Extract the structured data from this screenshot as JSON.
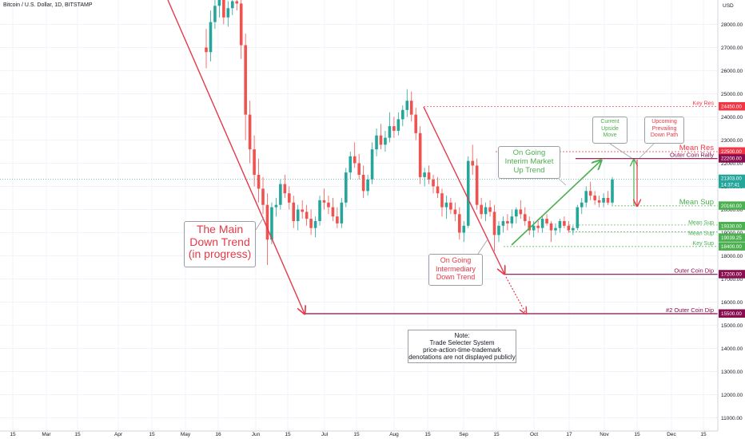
{
  "header": {
    "symbol_title": "Bitcoin / U.S. Dollar, 1D, BITSTAMP"
  },
  "colors": {
    "red": "#e53949",
    "green": "#4caf50",
    "maroon": "#880e4f",
    "bull": "#26a69a",
    "bear": "#ef5350",
    "mean_res": "#f23645"
  },
  "chart_data": {
    "type": "candlestick",
    "title": "Bitcoin / U.S. Dollar, 1D, BITSTAMP",
    "y_axis_unit": "USD",
    "ylim": [
      10500,
      29500
    ],
    "y_ticks": [
      "28000.00",
      "27000.00",
      "26000.00",
      "25000.00",
      "24000.00",
      "23000.00",
      "22000.00",
      "21000.00",
      "20000.00",
      "19000.00",
      "18000.00",
      "17000.00",
      "16000.00",
      "15000.00",
      "14000.00",
      "13000.00",
      "12000.00",
      "11000.00"
    ],
    "x_ticks": [
      "15",
      "Mar",
      "15",
      "Apr",
      "15",
      "May",
      "16",
      "Jun",
      "15",
      "Jul",
      "15",
      "Aug",
      "15",
      "Sep",
      "15",
      "Oct",
      "17",
      "Nov",
      "15",
      "Dec",
      "15"
    ],
    "last_price": {
      "value": "21303.00",
      "countdown": "14:37:41"
    },
    "levels": [
      {
        "name": "Key Res",
        "value": 24450,
        "tag": "24450.00",
        "style": "dashed",
        "color": "#f23645"
      },
      {
        "name": "Mean Res",
        "value": 22500,
        "tag": "22500.00",
        "style": "dashed",
        "color": "#f23645"
      },
      {
        "name": "Outer Coin Rally",
        "value": 22200,
        "tag": "22200.00",
        "style": "solid",
        "color": "#880e4f"
      },
      {
        "name": "Mean Sup",
        "value": 20160,
        "tag": "20160.00",
        "style": "dashed",
        "color": "#4caf50"
      },
      {
        "name": "Mean Sup",
        "value": 19330,
        "tag": "19330.00",
        "style": "dashed",
        "color": "#4caf50"
      },
      {
        "name": "Mean Sup",
        "value": 19039.25,
        "tag": "19039.25",
        "style": "dashed",
        "color": "#4caf50"
      },
      {
        "name": "Key Sup",
        "value": 18400,
        "tag": "18400.00",
        "style": "dashed",
        "color": "#4caf50"
      },
      {
        "name": "Outer Coin Dip",
        "value": 17200,
        "tag": "17200.00",
        "style": "solid",
        "color": "#880e4f"
      },
      {
        "name": "#2 Outer Coin Dip",
        "value": 15500,
        "tag": "15500.00",
        "style": "solid",
        "color": "#880e4f"
      }
    ],
    "annotations": {
      "main_trend": [
        "The Main",
        "Down Trend",
        "(in progress)"
      ],
      "intermediary_trend": [
        "On Going",
        "Intermediary",
        "Down Trend"
      ],
      "interim_trend": [
        "On Going",
        "Interim Market",
        "Up Trend"
      ],
      "upside_move": [
        "Current",
        "Upside",
        "Move"
      ],
      "down_path": [
        "Upcoming",
        "Prevailing",
        "Down Path"
      ],
      "note": [
        "Note:",
        "Trade Selecter System",
        "price-action-time-trademark",
        "denotations are not displayed publicly"
      ]
    },
    "candles": [
      [
        27000,
        27800,
        26100,
        26800
      ],
      [
        26800,
        28600,
        26400,
        28100
      ],
      [
        28100,
        29200,
        27800,
        28800
      ],
      [
        28800,
        29500,
        28300,
        29100
      ],
      [
        29100,
        29400,
        28000,
        28300
      ],
      [
        28300,
        29000,
        27900,
        28700
      ],
      [
        28700,
        29300,
        28400,
        29000
      ],
      [
        29000,
        29500,
        28600,
        28900
      ],
      [
        28900,
        29200,
        26500,
        27100
      ],
      [
        27100,
        27600,
        23000,
        24100
      ],
      [
        24100,
        24700,
        22000,
        22600
      ],
      [
        22600,
        23200,
        21000,
        21500
      ],
      [
        21500,
        22200,
        20300,
        20900
      ],
      [
        20900,
        21400,
        19800,
        20200
      ],
      [
        20200,
        20700,
        17600,
        18700
      ],
      [
        18700,
        20300,
        18500,
        20100
      ],
      [
        20100,
        20500,
        19700,
        20200
      ],
      [
        20200,
        21300,
        20000,
        21100
      ],
      [
        21100,
        21500,
        20500,
        20700
      ],
      [
        20700,
        21000,
        20000,
        20300
      ],
      [
        20300,
        20600,
        19200,
        19500
      ],
      [
        19500,
        20200,
        19100,
        20000
      ],
      [
        20000,
        20400,
        19600,
        19900
      ],
      [
        19900,
        20200,
        19300,
        19600
      ],
      [
        19600,
        20000,
        18900,
        19200
      ],
      [
        19200,
        19700,
        18800,
        19500
      ],
      [
        19500,
        20600,
        19300,
        20400
      ],
      [
        20400,
        20900,
        20000,
        20300
      ],
      [
        20300,
        20600,
        19800,
        20100
      ],
      [
        20100,
        20500,
        19500,
        19700
      ],
      [
        19700,
        20100,
        19200,
        19400
      ],
      [
        19400,
        20500,
        19200,
        20300
      ],
      [
        20300,
        21800,
        20100,
        21600
      ],
      [
        21600,
        22500,
        21300,
        22300
      ],
      [
        22300,
        22900,
        21800,
        22000
      ],
      [
        22000,
        22400,
        21300,
        21500
      ],
      [
        21500,
        21900,
        20500,
        20800
      ],
      [
        20800,
        21500,
        20600,
        21300
      ],
      [
        21300,
        22900,
        21100,
        22600
      ],
      [
        22600,
        23500,
        22300,
        23200
      ],
      [
        23200,
        23700,
        22600,
        22800
      ],
      [
        22800,
        23400,
        22500,
        23100
      ],
      [
        23100,
        24200,
        22900,
        23600
      ],
      [
        23600,
        24000,
        23100,
        23400
      ],
      [
        23400,
        24200,
        23200,
        23900
      ],
      [
        23900,
        24500,
        23600,
        24300
      ],
      [
        24300,
        25200,
        24000,
        24700
      ],
      [
        24700,
        25100,
        23800,
        24100
      ],
      [
        24100,
        24400,
        23000,
        23300
      ],
      [
        23300,
        23600,
        21100,
        21400
      ],
      [
        21400,
        21800,
        21000,
        21600
      ],
      [
        21600,
        21900,
        21100,
        21300
      ],
      [
        21300,
        21500,
        20700,
        21000
      ],
      [
        21000,
        21400,
        20500,
        20700
      ],
      [
        20700,
        20900,
        19700,
        20100
      ],
      [
        20100,
        20600,
        19600,
        20300
      ],
      [
        20300,
        20500,
        19800,
        20000
      ],
      [
        20000,
        20300,
        19500,
        19800
      ],
      [
        19800,
        20100,
        18700,
        19000
      ],
      [
        19000,
        19500,
        18600,
        19300
      ],
      [
        19300,
        22300,
        19200,
        22100
      ],
      [
        22100,
        22800,
        21500,
        21900
      ],
      [
        21900,
        22200,
        20000,
        20200
      ],
      [
        20200,
        20500,
        19600,
        19800
      ],
      [
        19800,
        20300,
        19500,
        20100
      ],
      [
        20100,
        20400,
        19700,
        19900
      ],
      [
        19900,
        20200,
        18200,
        18900
      ],
      [
        18900,
        19500,
        18600,
        19300
      ],
      [
        19300,
        19700,
        19000,
        19500
      ],
      [
        19500,
        19800,
        19100,
        19400
      ],
      [
        19400,
        20000,
        19200,
        19700
      ],
      [
        19700,
        20100,
        19400,
        20000
      ],
      [
        20000,
        20400,
        19600,
        19800
      ],
      [
        19800,
        20100,
        19300,
        19500
      ],
      [
        19500,
        19700,
        18900,
        19100
      ],
      [
        19100,
        19500,
        18800,
        19300
      ],
      [
        19300,
        19600,
        19000,
        19200
      ],
      [
        19200,
        19700,
        19000,
        19600
      ],
      [
        19600,
        19800,
        19300,
        19400
      ],
      [
        19400,
        19500,
        18600,
        19100
      ],
      [
        19100,
        19400,
        18900,
        19200
      ],
      [
        19200,
        19600,
        19000,
        19500
      ],
      [
        19500,
        19700,
        19200,
        19300
      ],
      [
        19300,
        19500,
        19000,
        19100
      ],
      [
        19100,
        19300,
        18900,
        19200
      ],
      [
        19200,
        20200,
        19100,
        20100
      ],
      [
        20100,
        20500,
        19800,
        20300
      ],
      [
        20300,
        21000,
        20100,
        20800
      ],
      [
        20800,
        21200,
        20400,
        20600
      ],
      [
        20600,
        20800,
        20200,
        20400
      ],
      [
        20400,
        20600,
        20100,
        20300
      ],
      [
        20300,
        20700,
        20100,
        20500
      ],
      [
        20500,
        20800,
        20200,
        20300
      ],
      [
        20300,
        21400,
        20200,
        21300
      ]
    ]
  }
}
